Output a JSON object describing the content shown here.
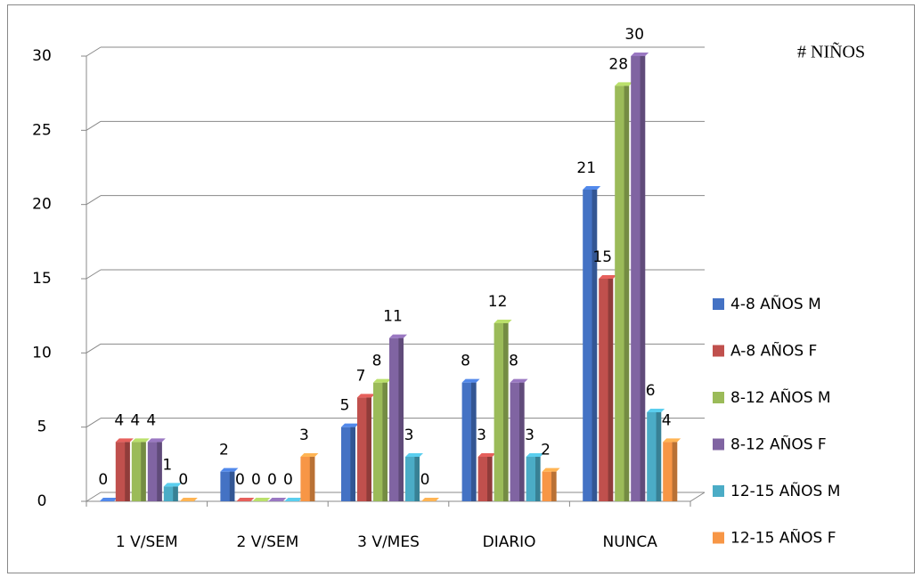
{
  "chart_data": {
    "type": "bar",
    "title": "# NIÑOS",
    "categories": [
      "1 V/SEM",
      "2 V/SEM",
      "3 V/MES",
      "DIARIO",
      "NUNCA"
    ],
    "series": [
      {
        "name": "4-8 AÑOS M",
        "color": "#4472c4",
        "values": [
          0,
          2,
          5,
          8,
          21
        ]
      },
      {
        "name": "A-8 AÑOS F",
        "color": "#c0504d",
        "values": [
          4,
          0,
          7,
          3,
          15
        ]
      },
      {
        "name": "8-12 AÑOS M",
        "color": "#9bbb59",
        "values": [
          4,
          0,
          8,
          12,
          28
        ]
      },
      {
        "name": "8-12 AÑOS F",
        "color": "#8064a2",
        "values": [
          4,
          0,
          11,
          8,
          30
        ]
      },
      {
        "name": "12-15 AÑOS M",
        "color": "#4bacc6",
        "values": [
          1,
          0,
          3,
          3,
          6
        ]
      },
      {
        "name": "12-15 AÑOS F",
        "color": "#f79646",
        "values": [
          0,
          3,
          0,
          2,
          4
        ]
      }
    ],
    "ylim": [
      0,
      30
    ],
    "yticks": [
      0,
      5,
      10,
      15,
      20,
      25,
      30
    ],
    "grid": true,
    "legend": "right"
  }
}
